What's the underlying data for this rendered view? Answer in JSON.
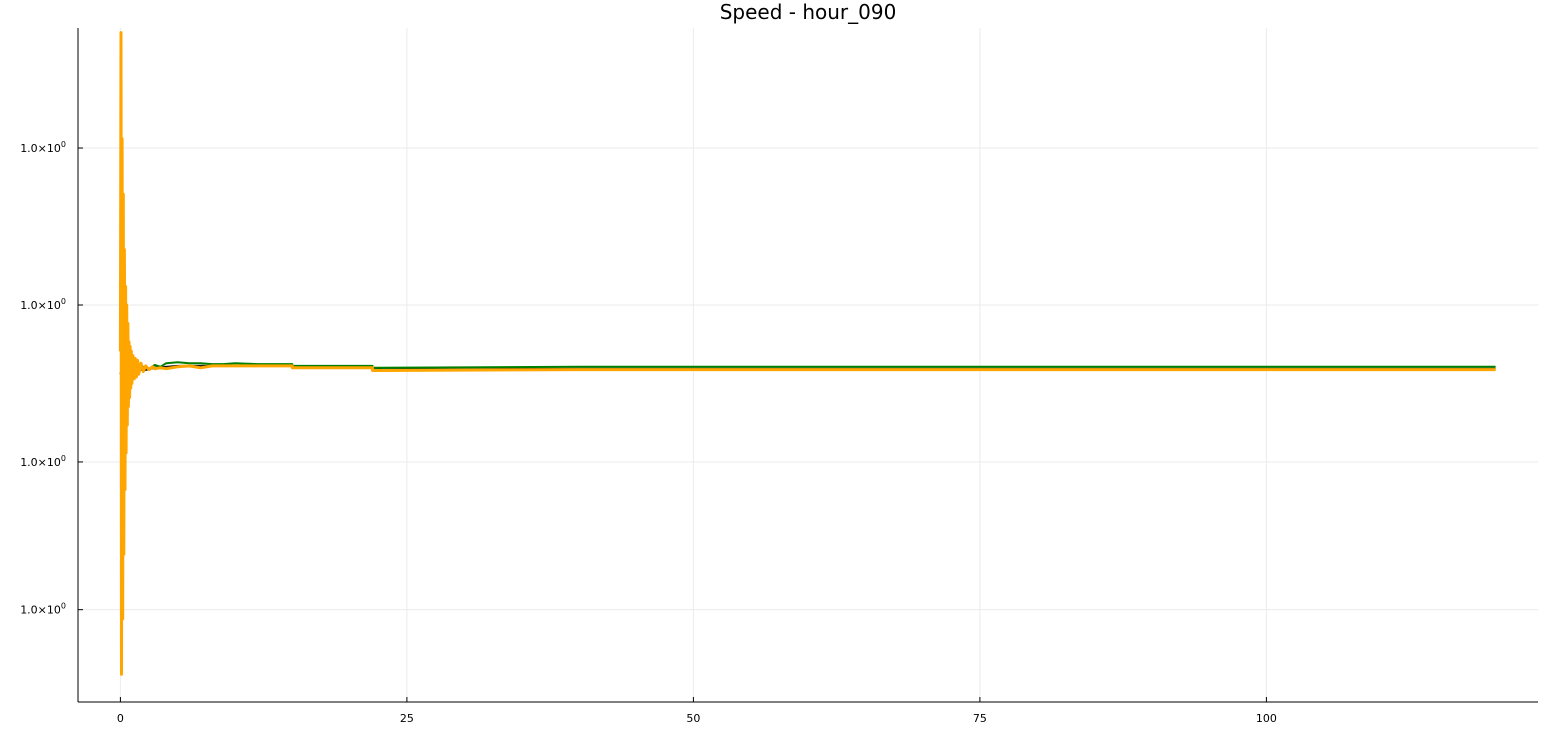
{
  "chart_data": {
    "type": "line",
    "title": "Speed - hour_090",
    "xlabel": "",
    "ylabel": "",
    "xlim": [
      -3.7,
      123.7
    ],
    "ylim": [
      0.27,
      1.0
    ],
    "grid": true,
    "legend": "none",
    "x_ticks": [
      {
        "value": 0,
        "label": "0"
      },
      {
        "value": 25,
        "label": "25"
      },
      {
        "value": 50,
        "label": "50"
      },
      {
        "value": 75,
        "label": "75"
      },
      {
        "value": 100,
        "label": "100"
      }
    ],
    "y_ticks": [
      {
        "value": 0.87,
        "mant": "1.0×10",
        "exp": "0"
      },
      {
        "value": 0.7,
        "mant": "1.0×10",
        "exp": "0"
      },
      {
        "value": 0.53,
        "mant": "1.0×10",
        "exp": "0"
      },
      {
        "value": 0.37,
        "mant": "1.0×10",
        "exp": "0"
      }
    ],
    "series": [
      {
        "color": "#1a1a1a",
        "x": [
          0,
          0.5,
          1,
          2,
          3,
          5,
          8,
          10,
          15,
          15.01,
          22,
          22.01,
          40,
          60,
          80,
          100,
          120
        ],
        "y": [
          0.628,
          0.63,
          0.634,
          0.629,
          0.632,
          0.634,
          0.634,
          0.634,
          0.634,
          0.632,
          0.632,
          0.63,
          0.631,
          0.631,
          0.631,
          0.631,
          0.631
        ]
      },
      {
        "color": "#008000",
        "x": [
          0,
          0.3,
          0.6,
          1,
          1.5,
          2,
          2.5,
          3,
          3.5,
          4,
          5,
          6,
          7,
          8,
          9,
          10,
          12,
          15,
          15.01,
          22,
          22.01,
          40,
          60,
          80,
          100,
          120
        ],
        "y": [
          0.625,
          0.64,
          0.628,
          0.636,
          0.63,
          0.633,
          0.631,
          0.635,
          0.633,
          0.637,
          0.638,
          0.637,
          0.637,
          0.636,
          0.636,
          0.637,
          0.636,
          0.636,
          0.634,
          0.634,
          0.632,
          0.633,
          0.633,
          0.633,
          0.633,
          0.633
        ]
      },
      {
        "color": "#ffa500",
        "x": [
          0,
          0.05,
          0.1,
          0.15,
          0.2,
          0.25,
          0.3,
          0.35,
          0.4,
          0.45,
          0.5,
          0.55,
          0.6,
          0.65,
          0.7,
          0.75,
          0.8,
          0.85,
          0.9,
          0.95,
          1.0,
          1.1,
          1.2,
          1.3,
          1.4,
          1.5,
          1.6,
          1.8,
          2.0,
          2.2,
          2.5,
          2.8,
          3.0,
          3.5,
          4.0,
          5,
          6,
          7,
          8,
          10,
          12,
          15,
          15.01,
          22,
          22.01,
          40,
          60,
          80,
          100,
          120
        ],
        "y": [
          0.65,
          0.995,
          0.3,
          0.88,
          0.36,
          0.82,
          0.43,
          0.76,
          0.5,
          0.72,
          0.54,
          0.7,
          0.57,
          0.68,
          0.59,
          0.66,
          0.6,
          0.655,
          0.61,
          0.65,
          0.615,
          0.645,
          0.62,
          0.642,
          0.622,
          0.64,
          0.625,
          0.637,
          0.628,
          0.634,
          0.63,
          0.633,
          0.631,
          0.632,
          0.631,
          0.633,
          0.634,
          0.632,
          0.634,
          0.634,
          0.634,
          0.634,
          0.632,
          0.632,
          0.629,
          0.63,
          0.63,
          0.63,
          0.63,
          0.63
        ]
      }
    ]
  }
}
